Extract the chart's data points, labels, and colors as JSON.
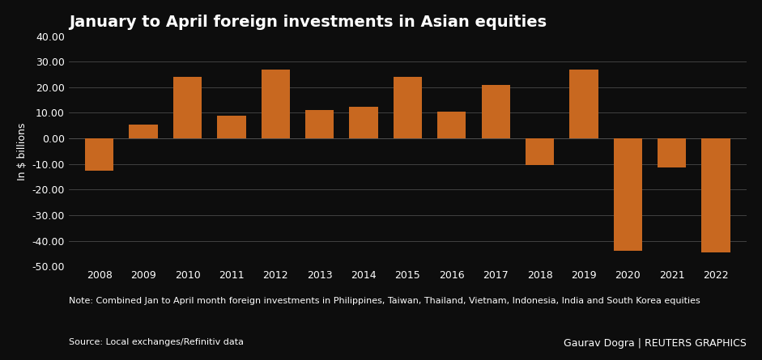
{
  "title": "January to April foreign investments in Asian equities",
  "years": [
    2008,
    2009,
    2010,
    2011,
    2012,
    2013,
    2014,
    2015,
    2016,
    2017,
    2018,
    2019,
    2020,
    2021,
    2022
  ],
  "values": [
    -12.5,
    5.5,
    24.0,
    9.0,
    27.0,
    11.0,
    12.5,
    24.0,
    10.5,
    21.0,
    -10.5,
    27.0,
    -44.0,
    -11.5,
    -44.5
  ],
  "bar_color": "#C86820",
  "background_color": "#0d0d0d",
  "text_color": "#ffffff",
  "grid_color": "#555555",
  "ylabel": "In $ billions",
  "ylim": [
    -50,
    40
  ],
  "yticks": [
    -50,
    -40,
    -30,
    -20,
    -10,
    0,
    10,
    20,
    30,
    40
  ],
  "ytick_labels": [
    "-50.00",
    "-40.00",
    "-30.00",
    "-20.00",
    "-10.00",
    "0.00",
    "10.00",
    "20.00",
    "30.00",
    "40.00"
  ],
  "note": "Note: Combined Jan to April month foreign investments in Philippines, Taiwan, Thailand, Vietnam, Indonesia, India and South Korea equities",
  "source": "Source: Local exchanges/Refinitiv data",
  "credit": "Gaurav Dogra | REUTERS GRAPHICS",
  "title_fontsize": 14,
  "axis_fontsize": 9,
  "note_fontsize": 8,
  "source_fontsize": 8,
  "credit_fontsize": 9
}
